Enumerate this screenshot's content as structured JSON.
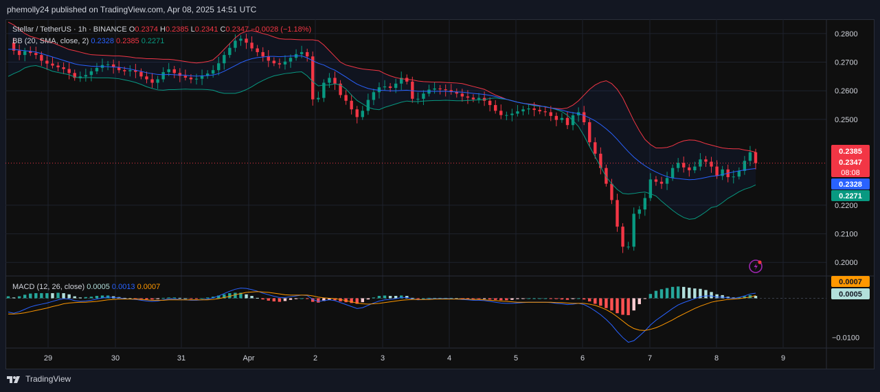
{
  "publish_line": "phemolly24 published on TradingView.com, Apr 08, 2025 14:51 UTC",
  "footer_brand": "TradingView",
  "legend": {
    "symbol": "Stellar / TetherUS · 1h · BINANCE",
    "open_label": "O",
    "open": "0.2374",
    "high_label": "H",
    "high": "0.2385",
    "low_label": "L",
    "low": "0.2341",
    "close_label": "C",
    "close": "0.2347",
    "change": "−0.0028 (−1.18%)",
    "bb_label": "BB (20, SMA, close, 2)",
    "bb_basis": "0.2328",
    "bb_upper": "0.2385",
    "bb_lower": "0.2271",
    "macd_label": "MACD (12, 26, close)",
    "macd_hist": "0.0005",
    "macd_line": "0.0013",
    "macd_signal": "0.0007"
  },
  "price_badges": {
    "upper": "0.2385",
    "close": "0.2347",
    "countdown": "08:08",
    "basis": "0.2328",
    "lower": "0.2271",
    "macd_signal": "0.0007",
    "macd_hist": "0.0005"
  },
  "colors": {
    "background": "#0f0f0f",
    "up": "#089981",
    "down": "#f23645",
    "bb_basis": "#2962ff",
    "bb_upper": "#f23645",
    "bb_lower": "#089981",
    "macd_line": "#2962ff",
    "signal_line": "#ff9800"
  },
  "chart_data": {
    "type": "candlestick",
    "price_axis": {
      "ticks": [
        "0.2800",
        "0.2700",
        "0.2600",
        "0.2500",
        "0.2200",
        "0.2100",
        "0.2000"
      ],
      "ylim": [
        0.1955,
        0.285
      ]
    },
    "macd_axis": {
      "ticks": [
        "−0.0100"
      ],
      "ylim": [
        -0.0125,
        0.0055
      ]
    },
    "x_ticks": [
      "29",
      "30",
      "31",
      "Apr",
      "2",
      "3",
      "4",
      "5",
      "6",
      "7",
      "8",
      "9"
    ],
    "price_series": [
      0.2768,
      0.274,
      0.2725,
      0.2738,
      0.2732,
      0.2725,
      0.2705,
      0.2695,
      0.2688,
      0.2682,
      0.2676,
      0.2662,
      0.2645,
      0.265,
      0.2655,
      0.2668,
      0.268,
      0.269,
      0.2692,
      0.2682,
      0.2672,
      0.2668,
      0.2672,
      0.2666,
      0.265,
      0.264,
      0.2628,
      0.264,
      0.2665,
      0.2675,
      0.2662,
      0.2652,
      0.2646,
      0.264,
      0.2642,
      0.2652,
      0.266,
      0.2672,
      0.2696,
      0.2725,
      0.275,
      0.2775,
      0.2782,
      0.2768,
      0.2748,
      0.2735,
      0.272,
      0.2705,
      0.2696,
      0.2692,
      0.2702,
      0.2715,
      0.2728,
      0.2735,
      0.272,
      0.257,
      0.2575,
      0.2628,
      0.2645,
      0.2625,
      0.2585,
      0.2565,
      0.2535,
      0.2508,
      0.253,
      0.2568,
      0.2595,
      0.2612,
      0.2615,
      0.261,
      0.2625,
      0.2645,
      0.2632,
      0.2572,
      0.2572,
      0.259,
      0.2604,
      0.2608,
      0.2605,
      0.2602,
      0.2596,
      0.259,
      0.258,
      0.2576,
      0.257,
      0.2575,
      0.2565,
      0.255,
      0.253,
      0.2515,
      0.2515,
      0.252,
      0.2528,
      0.2535,
      0.2538,
      0.2533,
      0.2528,
      0.2525,
      0.2512,
      0.2498,
      0.2505,
      0.248,
      0.2514,
      0.2525,
      0.249,
      0.242,
      0.238,
      0.233,
      0.2275,
      0.2218,
      0.2125,
      0.2055,
      0.2055,
      0.217,
      0.2185,
      0.2225,
      0.229,
      0.2282,
      0.2275,
      0.2295,
      0.233,
      0.2348,
      0.2332,
      0.2322,
      0.2335,
      0.236,
      0.2352,
      0.2335,
      0.2302,
      0.2325,
      0.2298,
      0.23,
      0.232,
      0.2355,
      0.2385,
      0.2347
    ],
    "bb_basis": [
      0.2745,
      0.2745,
      0.2742,
      0.274,
      0.2738,
      0.2735,
      0.273,
      0.2724,
      0.2718,
      0.2712,
      0.2706,
      0.27,
      0.2694,
      0.269,
      0.2688,
      0.2686,
      0.2685,
      0.2685,
      0.2684,
      0.2683,
      0.2682,
      0.2679,
      0.2676,
      0.2672,
      0.2668,
      0.2663,
      0.266,
      0.2657,
      0.2656,
      0.2657,
      0.2656,
      0.2655,
      0.2654,
      0.2652,
      0.2651,
      0.2652,
      0.2653,
      0.2655,
      0.266,
      0.2668,
      0.2678,
      0.2688,
      0.2698,
      0.2706,
      0.2712,
      0.2716,
      0.2718,
      0.272,
      0.272,
      0.2719,
      0.272,
      0.2721,
      0.2722,
      0.2722,
      0.2715,
      0.2705,
      0.2696,
      0.269,
      0.268,
      0.2672,
      0.266,
      0.2648,
      0.2635,
      0.2623,
      0.2615,
      0.2608,
      0.2604,
      0.2602,
      0.2601,
      0.26,
      0.26,
      0.2601,
      0.2602,
      0.26,
      0.2598,
      0.2598,
      0.2598,
      0.2598,
      0.2598,
      0.2598,
      0.2597,
      0.2596,
      0.2595,
      0.2593,
      0.2591,
      0.2589,
      0.2587,
      0.2584,
      0.258,
      0.2575,
      0.257,
      0.2565,
      0.256,
      0.2556,
      0.2553,
      0.255,
      0.2547,
      0.2544,
      0.254,
      0.2536,
      0.2532,
      0.2527,
      0.2523,
      0.252,
      0.2514,
      0.2505,
      0.2495,
      0.2482,
      0.2467,
      0.245,
      0.243,
      0.2408,
      0.2387,
      0.2368,
      0.2352,
      0.2338,
      0.2326,
      0.2316,
      0.2307,
      0.23,
      0.2295,
      0.2293,
      0.2291,
      0.2289,
      0.229,
      0.2293,
      0.2297,
      0.2301,
      0.2303,
      0.2307,
      0.2312,
      0.2316,
      0.232,
      0.2323,
      0.2326,
      0.2328
    ],
    "bb_upper": [
      0.284,
      0.283,
      0.2815,
      0.28,
      0.279,
      0.2785,
      0.2778,
      0.2772,
      0.2768,
      0.276,
      0.2752,
      0.2744,
      0.274,
      0.2735,
      0.273,
      0.2726,
      0.2725,
      0.2724,
      0.2723,
      0.2722,
      0.2722,
      0.272,
      0.2718,
      0.2715,
      0.2714,
      0.2712,
      0.2712,
      0.2711,
      0.271,
      0.271,
      0.2708,
      0.2705,
      0.2702,
      0.2699,
      0.2697,
      0.2699,
      0.2702,
      0.2708,
      0.2725,
      0.2745,
      0.2765,
      0.2785,
      0.28,
      0.2808,
      0.281,
      0.2806,
      0.28,
      0.2795,
      0.2788,
      0.2782,
      0.278,
      0.278,
      0.2779,
      0.2778,
      0.2778,
      0.2778,
      0.2775,
      0.276,
      0.274,
      0.272,
      0.27,
      0.269,
      0.2685,
      0.268,
      0.2676,
      0.2674,
      0.2672,
      0.267,
      0.266,
      0.2652,
      0.2646,
      0.2642,
      0.264,
      0.2638,
      0.2634,
      0.2632,
      0.2631,
      0.263,
      0.263,
      0.2629,
      0.2628,
      0.2627,
      0.2625,
      0.262,
      0.2615,
      0.261,
      0.2605,
      0.2595,
      0.2585,
      0.2578,
      0.257,
      0.2565,
      0.256,
      0.2556,
      0.2554,
      0.2552,
      0.2548,
      0.2543,
      0.254,
      0.2538,
      0.2537,
      0.254,
      0.255,
      0.2565,
      0.2585,
      0.2605,
      0.262,
      0.263,
      0.2635,
      0.2625,
      0.2605,
      0.2575,
      0.2535,
      0.2495,
      0.246,
      0.243,
      0.2412,
      0.24,
      0.24,
      0.2402,
      0.2408,
      0.2418,
      0.2425,
      0.2428,
      0.2427,
      0.2422,
      0.2415,
      0.241,
      0.2405,
      0.24,
      0.2398,
      0.2397,
      0.2397,
      0.2393,
      0.239,
      0.2385
    ],
    "bb_lower": [
      0.265,
      0.266,
      0.2668,
      0.268,
      0.2686,
      0.2688,
      0.2683,
      0.2676,
      0.2668,
      0.2664,
      0.266,
      0.2656,
      0.2648,
      0.2645,
      0.2646,
      0.2646,
      0.2645,
      0.2645,
      0.2645,
      0.2644,
      0.2642,
      0.2638,
      0.2634,
      0.2629,
      0.2622,
      0.2614,
      0.2608,
      0.2603,
      0.2602,
      0.2604,
      0.2604,
      0.2605,
      0.2606,
      0.2605,
      0.2605,
      0.2605,
      0.2604,
      0.2602,
      0.2595,
      0.2591,
      0.2591,
      0.2591,
      0.2596,
      0.2604,
      0.2614,
      0.2626,
      0.2636,
      0.2645,
      0.2652,
      0.2656,
      0.266,
      0.2662,
      0.2665,
      0.2666,
      0.2652,
      0.2632,
      0.2617,
      0.262,
      0.262,
      0.2624,
      0.262,
      0.2606,
      0.2585,
      0.2566,
      0.2554,
      0.2542,
      0.2536,
      0.2534,
      0.2542,
      0.2548,
      0.2554,
      0.256,
      0.2564,
      0.2562,
      0.2562,
      0.2564,
      0.2565,
      0.2566,
      0.2566,
      0.2567,
      0.2566,
      0.2565,
      0.2565,
      0.2566,
      0.2567,
      0.2568,
      0.2569,
      0.2573,
      0.2575,
      0.2572,
      0.257,
      0.2565,
      0.256,
      0.2556,
      0.2552,
      0.2548,
      0.2546,
      0.2545,
      0.254,
      0.2534,
      0.2527,
      0.2514,
      0.2496,
      0.2475,
      0.2443,
      0.2405,
      0.237,
      0.2334,
      0.2299,
      0.2275,
      0.2255,
      0.2241,
      0.2239,
      0.2241,
      0.2244,
      0.2246,
      0.224,
      0.2232,
      0.2214,
      0.2198,
      0.2182,
      0.2168,
      0.2157,
      0.2151,
      0.2153,
      0.2164,
      0.2177,
      0.2192,
      0.2196,
      0.2209,
      0.2224,
      0.2235,
      0.2247,
      0.2256,
      0.2262,
      0.2271
    ],
    "macd_line": [
      -0.0035,
      -0.0038,
      -0.0034,
      -0.0028,
      -0.0022,
      -0.0018,
      -0.0015,
      -0.0012,
      -0.0008,
      -0.0004,
      -0.0001,
      -0.0002,
      -0.0006,
      -0.0008,
      -0.0007,
      -0.0005,
      -0.0002,
      0.0001,
      0.0003,
      0.0002,
      0.0001,
      -0.0001,
      -0.0002,
      -0.0003,
      -0.0005,
      -0.0007,
      -0.0008,
      -0.0007,
      -0.0004,
      -0.0002,
      -0.0002,
      -0.0003,
      -0.0004,
      -0.0005,
      -0.0005,
      -0.0004,
      -0.0002,
      0.0001,
      0.0006,
      0.0012,
      0.0018,
      0.0023,
      0.0026,
      0.0025,
      0.0022,
      0.0018,
      0.0013,
      0.0009,
      0.0005,
      0.0002,
      0.0002,
      0.0004,
      0.0006,
      0.0008,
      0.0007,
      -0.0003,
      -0.0008,
      -0.0006,
      -0.0004,
      -0.0006,
      -0.0011,
      -0.0016,
      -0.0021,
      -0.0026,
      -0.0024,
      -0.0018,
      -0.0012,
      -0.0007,
      -0.0004,
      -0.0003,
      -0.0001,
      0.0002,
      0.0002,
      -0.0002,
      -0.0004,
      -0.0003,
      -0.0002,
      -0.0001,
      -0.0001,
      -0.0001,
      -0.0001,
      -0.0002,
      -0.0003,
      -0.0004,
      -0.0005,
      -0.0005,
      -0.0006,
      -0.0008,
      -0.001,
      -0.0012,
      -0.0013,
      -0.0013,
      -0.0012,
      -0.0011,
      -0.001,
      -0.001,
      -0.001,
      -0.001,
      -0.0011,
      -0.0013,
      -0.0014,
      -0.0016,
      -0.0015,
      -0.0013,
      -0.0016,
      -0.0023,
      -0.0032,
      -0.0042,
      -0.0054,
      -0.0068,
      -0.0085,
      -0.01,
      -0.0112,
      -0.0108,
      -0.0096,
      -0.0083,
      -0.0068,
      -0.0056,
      -0.0046,
      -0.0036,
      -0.0026,
      -0.0017,
      -0.0011,
      -0.0006,
      -0.0001,
      0.0004,
      0.0006,
      0.0006,
      0.0003,
      0.0003,
      0.0001,
      0.0,
      0.0002,
      0.0006,
      0.0011,
      0.0013
    ],
    "signal_line": [
      -0.004,
      -0.004,
      -0.0039,
      -0.0037,
      -0.0034,
      -0.0031,
      -0.0028,
      -0.0025,
      -0.0021,
      -0.0018,
      -0.0014,
      -0.0012,
      -0.0011,
      -0.001,
      -0.001,
      -0.0009,
      -0.0008,
      -0.0006,
      -0.0004,
      -0.0003,
      -0.0002,
      -0.0002,
      -0.0002,
      -0.0002,
      -0.0003,
      -0.0004,
      -0.0005,
      -0.0005,
      -0.0005,
      -0.0004,
      -0.0004,
      -0.0004,
      -0.0004,
      -0.0004,
      -0.0004,
      -0.0004,
      -0.0004,
      -0.0003,
      -0.0001,
      0.0002,
      0.0005,
      0.0009,
      0.0012,
      0.0015,
      0.0016,
      0.0017,
      0.0016,
      0.0015,
      0.0013,
      0.0011,
      0.0009,
      0.0008,
      0.0008,
      0.0008,
      0.0008,
      0.0006,
      0.0003,
      0.0001,
      0.0,
      -0.0001,
      -0.0003,
      -0.0006,
      -0.0009,
      -0.0012,
      -0.0014,
      -0.0015,
      -0.0014,
      -0.0013,
      -0.0011,
      -0.0009,
      -0.0007,
      -0.0005,
      -0.0004,
      -0.0003,
      -0.0003,
      -0.0003,
      -0.0003,
      -0.0002,
      -0.0002,
      -0.0002,
      -0.0002,
      -0.0002,
      -0.0002,
      -0.0002,
      -0.0003,
      -0.0003,
      -0.0004,
      -0.0005,
      -0.0006,
      -0.0007,
      -0.0008,
      -0.0009,
      -0.001,
      -0.001,
      -0.001,
      -0.001,
      -0.001,
      -0.001,
      -0.001,
      -0.0011,
      -0.0011,
      -0.0012,
      -0.0013,
      -0.0013,
      -0.0013,
      -0.0015,
      -0.0018,
      -0.0023,
      -0.0029,
      -0.0037,
      -0.0047,
      -0.0058,
      -0.0069,
      -0.0077,
      -0.0081,
      -0.0082,
      -0.0079,
      -0.0075,
      -0.0069,
      -0.0062,
      -0.0055,
      -0.0047,
      -0.004,
      -0.0033,
      -0.0026,
      -0.002,
      -0.0015,
      -0.001,
      -0.0007,
      -0.0005,
      -0.0003,
      -0.0002,
      -0.0001,
      0.0001,
      0.0003,
      0.0007
    ]
  }
}
